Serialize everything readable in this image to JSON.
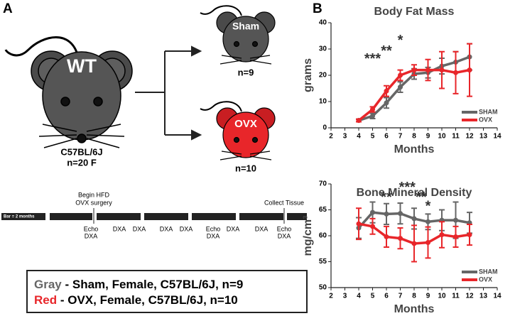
{
  "diagram": {
    "panel_a": "A",
    "panel_b": "B",
    "wt_label": "WT",
    "strain": "C57BL/6J",
    "wt_n": "n=20 F",
    "sham_label": "Sham",
    "sham_n": "n=9",
    "ovx_label": "OVX",
    "ovx_n": "n=10",
    "timeline": {
      "scale": "Bar = 2 months",
      "begin_1": "Begin HFD",
      "begin_2": "OVX surgery",
      "end": "Collect Tissue",
      "events": [
        "Echo",
        "DXA",
        "DXA",
        "DXA",
        "DXA",
        "DXA",
        "Echo",
        "DXA",
        "DXA",
        "DXA",
        "Echo",
        "DXA"
      ]
    },
    "legend_box": {
      "gray_word": "Gray",
      "gray_text": " - Sham, Female, C57BL/6J, n=9",
      "red_word": "Red",
      "red_text": " - OVX, Female, C57BL/6J, n=10"
    }
  },
  "chart_data": [
    {
      "type": "line",
      "title": "Body Fat Mass",
      "xlabel": "Months",
      "ylabel": "grams",
      "x": [
        4,
        5,
        6,
        7,
        8,
        9,
        10,
        11,
        12
      ],
      "series": [
        {
          "name": "SHAM",
          "color": "#666666",
          "values": [
            2.8,
            4.5,
            9.5,
            15.5,
            20.5,
            21,
            23.5,
            25,
            27
          ],
          "errors": [
            0.5,
            1,
            2,
            2,
            2,
            2,
            3,
            4,
            5
          ]
        },
        {
          "name": "OVX",
          "color": "#e8262a",
          "values": [
            2.8,
            7,
            14,
            20,
            22,
            22,
            22,
            21,
            22
          ],
          "errors": [
            0.5,
            1,
            2,
            2,
            2,
            4,
            7,
            8,
            10
          ]
        }
      ],
      "annotations": [
        {
          "text": "***",
          "x": 5,
          "y": 26
        },
        {
          "text": "**",
          "x": 6,
          "y": 29
        },
        {
          "text": "*",
          "x": 7,
          "y": 33
        }
      ],
      "xlim": [
        2,
        14
      ],
      "xticks": [
        2,
        3,
        4,
        5,
        6,
        7,
        8,
        9,
        10,
        11,
        12,
        13,
        14
      ],
      "ylim": [
        0,
        40
      ],
      "yticks": [
        0,
        10,
        20,
        30,
        40
      ],
      "legend": "lower right"
    },
    {
      "type": "line",
      "title": "Bone Mineral Density",
      "xlabel": "Months",
      "ylabel": "mg/cm³",
      "x": [
        4,
        5,
        6,
        7,
        8,
        9,
        10,
        11,
        12
      ],
      "series": [
        {
          "name": "SHAM",
          "color": "#666666",
          "values": [
            61.5,
            64.5,
            64.2,
            64.3,
            63.3,
            62.7,
            63,
            63,
            62.5
          ],
          "errors": [
            2,
            2,
            2,
            2,
            2,
            1.5,
            2,
            3.5,
            2
          ]
        },
        {
          "name": "OVX",
          "color": "#e8262a",
          "values": [
            62.3,
            61.8,
            59.8,
            59.5,
            58.5,
            58.7,
            60.2,
            59.8,
            60.2
          ],
          "errors": [
            3,
            1.5,
            2,
            2,
            3.5,
            3,
            2.5,
            2,
            2
          ]
        }
      ],
      "annotations": [
        {
          "text": "**",
          "x": 6,
          "y": 67.3
        },
        {
          "text": "***",
          "x": 7.5,
          "y": 69.2
        },
        {
          "text": "**",
          "x": 8.5,
          "y": 67.3
        },
        {
          "text": "*",
          "x": 9,
          "y": 65.6
        }
      ],
      "xlim": [
        2,
        14
      ],
      "xticks": [
        2,
        3,
        4,
        5,
        6,
        7,
        8,
        9,
        10,
        11,
        12,
        13,
        14
      ],
      "ylim": [
        50,
        70
      ],
      "yticks": [
        50,
        55,
        60,
        65,
        70
      ],
      "legend": "lower right"
    }
  ]
}
